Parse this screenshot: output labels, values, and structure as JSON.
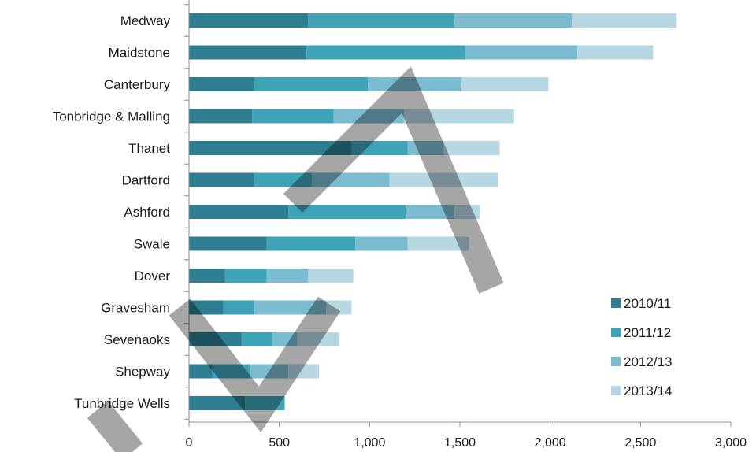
{
  "chart_data": {
    "type": "bar",
    "orientation": "horizontal",
    "stacked": true,
    "title": "",
    "xlabel": "",
    "ylabel": "",
    "xlim": [
      0,
      3000
    ],
    "x_ticks": [
      0,
      500,
      1000,
      1500,
      2000,
      2500,
      3000
    ],
    "x_tick_labels": [
      "0",
      "500",
      "1,000",
      "1,500",
      "2,000",
      "2,500",
      "3,000"
    ],
    "grid": false,
    "legend_position": "bottom-right",
    "categories": [
      "Medway",
      "Maidstone",
      "Canterbury",
      "Tonbridge & Malling",
      "Thanet",
      "Dartford",
      "Ashford",
      "Swale",
      "Dover",
      "Gravesham",
      "Sevenaoks",
      "Shepway",
      "Tunbridge Wells"
    ],
    "series": [
      {
        "name": "2010/11",
        "color": "#2e7d91",
        "values": [
          660,
          650,
          360,
          350,
          900,
          360,
          550,
          430,
          200,
          190,
          290,
          130,
          310
        ]
      },
      {
        "name": "2011/12",
        "color": "#3fa3b8",
        "values": [
          810,
          880,
          630,
          450,
          310,
          320,
          650,
          490,
          230,
          170,
          170,
          210,
          220
        ]
      },
      {
        "name": "2012/13",
        "color": "#7cbcd0",
        "values": [
          650,
          620,
          520,
          390,
          200,
          430,
          270,
          290,
          230,
          400,
          140,
          210,
          0
        ]
      },
      {
        "name": "2013/14",
        "color": "#b7d8e3",
        "values": [
          580,
          420,
          480,
          610,
          310,
          600,
          140,
          340,
          250,
          140,
          230,
          170,
          0
        ]
      }
    ]
  },
  "watermark": {
    "description": "large diagonal N-shaped grey strokes overlaid on the chart"
  }
}
